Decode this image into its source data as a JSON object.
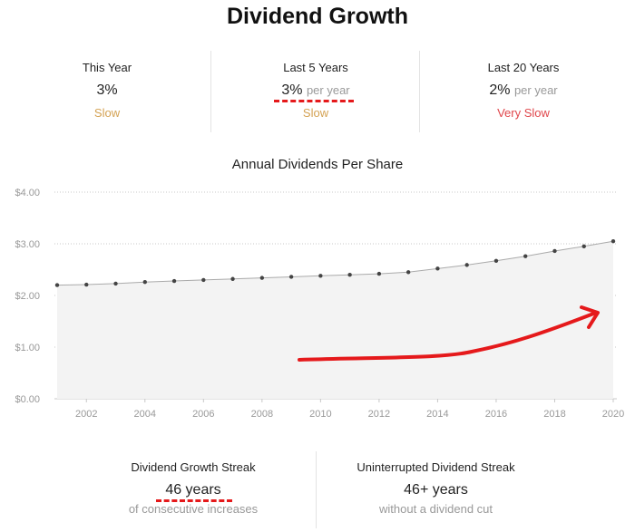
{
  "title": "Dividend Growth",
  "stats": [
    {
      "label": "This Year",
      "value": "3%",
      "unit": "",
      "speed": "Slow",
      "speed_color": "#d4a253"
    },
    {
      "label": "Last 5 Years",
      "value": "3%",
      "unit": "per year",
      "speed": "Slow",
      "speed_color": "#d4a253"
    },
    {
      "label": "Last 20 Years",
      "value": "2%",
      "unit": "per year",
      "speed": "Very Slow",
      "speed_color": "#e0474c"
    }
  ],
  "chart_data": {
    "type": "area",
    "title": "Annual Dividends Per Share",
    "x": [
      2001,
      2002,
      2003,
      2004,
      2005,
      2006,
      2007,
      2008,
      2009,
      2010,
      2011,
      2012,
      2013,
      2014,
      2015,
      2016,
      2017,
      2018,
      2019,
      2020
    ],
    "values": [
      2.2,
      2.21,
      2.23,
      2.26,
      2.28,
      2.3,
      2.32,
      2.34,
      2.36,
      2.38,
      2.4,
      2.42,
      2.45,
      2.52,
      2.59,
      2.67,
      2.76,
      2.86,
      2.95,
      3.05
    ],
    "x_ticks": [
      "2002",
      "2004",
      "2006",
      "2008",
      "2010",
      "2012",
      "2014",
      "2016",
      "2018",
      "2020"
    ],
    "y_ticks": [
      "$0.00",
      "$1.00",
      "$2.00",
      "$3.00",
      "$4.00"
    ],
    "ylim": [
      0,
      4
    ],
    "grid": true,
    "line_color": "#aaaaaa",
    "fill_color": "#f3f3f3",
    "annotation_arrow_color": "#e5191b"
  },
  "bottom_stats": [
    {
      "label": "Dividend Growth Streak",
      "value": "46 years",
      "sub": "of consecutive increases"
    },
    {
      "label": "Uninterrupted Dividend Streak",
      "value": "46+ years",
      "sub": "without a dividend cut"
    }
  ]
}
